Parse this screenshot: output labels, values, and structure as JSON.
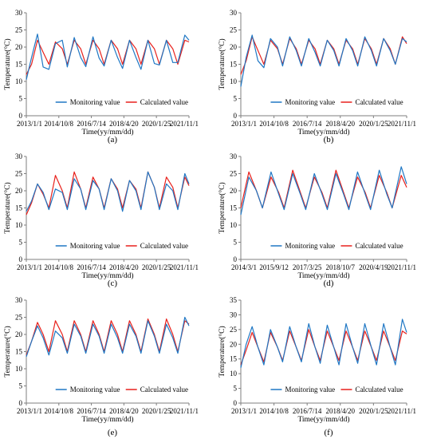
{
  "figure": {
    "panel_count": 6
  },
  "colors": {
    "monitoring": "#1f77c4",
    "calculated": "#e8211c",
    "axis": "#7f7f7f"
  },
  "chart_data": [
    {
      "type": "line",
      "panel_label": "(a)",
      "xlabel": "Time(yy/mm/dd)",
      "ylabel": "Temperature(°C)",
      "xlim": [
        "2013-01-01",
        "2021-11-01"
      ],
      "ylim": [
        0,
        30
      ],
      "yticks": [
        0,
        5,
        10,
        15,
        20,
        25,
        30
      ],
      "xticks": [
        "2013/1/1",
        "2014/10/8",
        "2016/7/14",
        "2018/4/20",
        "2020/1/25",
        "2021/11/1"
      ],
      "legend_position": "bottom-center",
      "grid": false,
      "series": [
        {
          "name": "Monitoring value",
          "color": "#1f77c4",
          "x": [
            "2013-01-01",
            "2013-04-15",
            "2013-08-10",
            "2013-12-01",
            "2014-03-25",
            "2014-08-01",
            "2014-12-15",
            "2015-03-25",
            "2015-08-10",
            "2015-12-15",
            "2016-03-25",
            "2016-08-15",
            "2016-12-15",
            "2017-03-25",
            "2017-08-10",
            "2017-12-15",
            "2018-03-25",
            "2018-08-10",
            "2018-12-15",
            "2019-03-25",
            "2019-08-10",
            "2019-12-15",
            "2020-03-25",
            "2020-08-10",
            "2020-12-15",
            "2021-03-25",
            "2021-08-10",
            "2021-11-01"
          ],
          "y": [
            10.5,
            17,
            23.8,
            14.2,
            13.5,
            21,
            22,
            14.2,
            22.8,
            17,
            14.3,
            23,
            16.8,
            14.5,
            22,
            17,
            13.8,
            22,
            17,
            13.5,
            22,
            15.2,
            14.8,
            22,
            15.5,
            15.5,
            23.5,
            22
          ]
        },
        {
          "name": "Calculated value",
          "color": "#e8211c",
          "x": [
            "2013-01-01",
            "2013-04-15",
            "2013-08-10",
            "2013-12-01",
            "2014-03-25",
            "2014-08-01",
            "2014-12-15",
            "2015-03-25",
            "2015-08-10",
            "2015-12-15",
            "2016-03-25",
            "2016-08-15",
            "2016-12-15",
            "2017-03-25",
            "2017-08-10",
            "2017-12-15",
            "2018-03-25",
            "2018-08-10",
            "2018-12-15",
            "2019-03-25",
            "2019-08-10",
            "2019-12-15",
            "2020-03-25",
            "2020-08-10",
            "2020-12-15",
            "2021-03-25",
            "2021-08-10",
            "2021-11-01"
          ],
          "y": [
            12,
            15,
            22,
            18.5,
            15,
            21.5,
            19.5,
            15,
            22,
            19.5,
            15,
            22,
            19.5,
            15,
            22,
            19.5,
            15,
            22,
            19.5,
            15,
            22,
            19.5,
            15,
            22,
            19.5,
            15,
            22,
            21.5
          ]
        }
      ]
    },
    {
      "type": "line",
      "panel_label": "(b)",
      "xlabel": "Time(yy/mm/dd)",
      "ylabel": "Temperature(°C)",
      "xlim": [
        "2013-01-01",
        "2021-11-01"
      ],
      "ylim": [
        0,
        30
      ],
      "yticks": [
        0,
        5,
        10,
        15,
        20,
        25,
        30
      ],
      "xticks": [
        "2013/1/1",
        "2014/10/8",
        "2016/7/14",
        "2018/4/20",
        "2020/1/25",
        "2021/11/1"
      ],
      "legend_position": "bottom-center",
      "grid": false,
      "series": [
        {
          "name": "Monitoring value",
          "color": "#1f77c4",
          "x": [
            "2013-01-01",
            "2013-04-15",
            "2013-08-10",
            "2013-12-01",
            "2014-03-25",
            "2014-08-01",
            "2014-12-15",
            "2015-03-25",
            "2015-08-10",
            "2015-12-15",
            "2016-03-25",
            "2016-08-15",
            "2016-12-15",
            "2017-03-25",
            "2017-08-10",
            "2017-12-15",
            "2018-03-25",
            "2018-08-10",
            "2018-12-15",
            "2019-03-25",
            "2019-08-10",
            "2019-12-15",
            "2020-03-25",
            "2020-08-10",
            "2020-12-15",
            "2021-03-25",
            "2021-08-10",
            "2021-11-01"
          ],
          "y": [
            8.5,
            17,
            23.5,
            16,
            14,
            22.5,
            20,
            14.5,
            23,
            19,
            14.5,
            22.5,
            18.5,
            14.5,
            22,
            19,
            14.5,
            22.5,
            19,
            14.5,
            23,
            19,
            14.5,
            22.5,
            19,
            15,
            22.5,
            21.5
          ]
        },
        {
          "name": "Calculated value",
          "color": "#e8211c",
          "x": [
            "2013-01-01",
            "2013-04-15",
            "2013-08-10",
            "2013-12-01",
            "2014-03-25",
            "2014-08-01",
            "2014-12-15",
            "2015-03-25",
            "2015-08-10",
            "2015-12-15",
            "2016-03-25",
            "2016-08-15",
            "2016-12-15",
            "2017-03-25",
            "2017-08-10",
            "2017-12-15",
            "2018-03-25",
            "2018-08-10",
            "2018-12-15",
            "2019-03-25",
            "2019-08-10",
            "2019-12-15",
            "2020-03-25",
            "2020-08-10",
            "2020-12-15",
            "2021-03-25",
            "2021-08-10",
            "2021-11-01"
          ],
          "y": [
            12,
            16,
            23,
            19,
            15,
            22,
            19.5,
            15,
            22.5,
            19.5,
            15,
            22,
            19.5,
            15,
            22,
            19.5,
            15,
            22,
            19.5,
            15,
            22.5,
            19.5,
            15,
            22.5,
            19.5,
            15,
            23,
            21
          ]
        }
      ]
    },
    {
      "type": "line",
      "panel_label": "(c)",
      "xlabel": "Time(yy/mm/dd)",
      "ylabel": "Temperature(°C)",
      "xlim": [
        "2013-01-01",
        "2021-11-01"
      ],
      "ylim": [
        0,
        30
      ],
      "yticks": [
        0,
        5,
        10,
        15,
        20,
        25,
        30
      ],
      "xticks": [
        "2013/1/1",
        "2014/10/8",
        "2016/7/14",
        "2018/4/20",
        "2020/1/25",
        "2021/11/1"
      ],
      "legend_position": "bottom-center",
      "grid": false,
      "series": [
        {
          "name": "Monitoring value",
          "color": "#1f77c4",
          "x": [
            "2013-01-01",
            "2013-04-15",
            "2013-08-10",
            "2013-12-01",
            "2014-03-25",
            "2014-08-01",
            "2014-12-15",
            "2015-03-25",
            "2015-08-10",
            "2015-12-15",
            "2016-03-25",
            "2016-08-15",
            "2016-12-15",
            "2017-03-25",
            "2017-08-10",
            "2017-12-15",
            "2018-03-25",
            "2018-08-10",
            "2018-12-15",
            "2019-03-25",
            "2019-08-10",
            "2019-12-15",
            "2020-03-25",
            "2020-08-10",
            "2020-12-15",
            "2021-03-25",
            "2021-08-10",
            "2021-11-01"
          ],
          "y": [
            14,
            17,
            22,
            19.5,
            14.5,
            20.5,
            19.5,
            14.5,
            23.5,
            20.5,
            14.5,
            23,
            20.5,
            14.5,
            23.5,
            20,
            14,
            23,
            20,
            14.5,
            25.5,
            21,
            14.5,
            22,
            20,
            14.5,
            25,
            22
          ]
        },
        {
          "name": "Calculated value",
          "color": "#e8211c",
          "x": [
            "2013-01-01",
            "2013-04-15",
            "2013-08-10",
            "2013-12-01",
            "2014-03-25",
            "2014-08-01",
            "2014-12-15",
            "2015-03-25",
            "2015-08-10",
            "2015-12-15",
            "2016-03-25",
            "2016-08-15",
            "2016-12-15",
            "2017-03-25",
            "2017-08-10",
            "2017-12-15",
            "2018-03-25",
            "2018-08-10",
            "2018-12-15",
            "2019-03-25",
            "2019-08-10",
            "2019-12-15",
            "2020-03-25",
            "2020-08-10",
            "2020-12-15",
            "2021-03-25",
            "2021-08-10",
            "2021-11-01"
          ],
          "y": [
            13,
            16.5,
            22,
            19,
            15,
            24.5,
            20,
            15,
            25.5,
            20.5,
            15,
            24,
            20.5,
            15,
            23.5,
            20.5,
            15,
            23,
            20.5,
            15,
            25.5,
            21,
            15,
            24,
            21,
            15,
            24,
            21.5
          ]
        }
      ]
    },
    {
      "type": "line",
      "panel_label": "(d)",
      "xlabel": "Time(yy/mm/dd)",
      "ylabel": "Temperature(°C)",
      "xlim": [
        "2014-03-01",
        "2021-11-01"
      ],
      "ylim": [
        0,
        30
      ],
      "yticks": [
        0,
        5,
        10,
        15,
        20,
        25,
        30
      ],
      "xticks": [
        "2014/3/1",
        "2015/9/12",
        "2017/3/25",
        "2018/10/7",
        "2020/4/19",
        "2021/11/1"
      ],
      "legend_position": "bottom-center",
      "grid": false,
      "series": [
        {
          "name": "Monitoring value",
          "color": "#1f77c4",
          "x": [
            "2014-03-01",
            "2014-07-15",
            "2014-11-20",
            "2015-03-01",
            "2015-07-25",
            "2015-12-01",
            "2016-03-01",
            "2016-07-25",
            "2016-12-01",
            "2017-03-01",
            "2017-07-25",
            "2017-12-01",
            "2018-03-01",
            "2018-07-25",
            "2018-12-01",
            "2019-03-01",
            "2019-07-25",
            "2019-12-01",
            "2020-03-01",
            "2020-07-25",
            "2020-12-01",
            "2021-03-01",
            "2021-08-01",
            "2021-11-01"
          ],
          "y": [
            13,
            24,
            20,
            15,
            25.5,
            19,
            14.5,
            25,
            19,
            14.5,
            25,
            19,
            14.5,
            25,
            19,
            14.5,
            25.5,
            19,
            14.5,
            26,
            19,
            15,
            27,
            22
          ]
        },
        {
          "name": "Calculated value",
          "color": "#e8211c",
          "x": [
            "2014-03-01",
            "2014-07-15",
            "2014-11-20",
            "2015-03-01",
            "2015-07-25",
            "2015-12-01",
            "2016-03-01",
            "2016-07-25",
            "2016-12-01",
            "2017-03-01",
            "2017-07-25",
            "2017-12-01",
            "2018-03-01",
            "2018-07-25",
            "2018-12-01",
            "2019-03-01",
            "2019-07-25",
            "2019-12-01",
            "2020-03-01",
            "2020-07-25",
            "2020-12-01",
            "2021-03-01",
            "2021-08-01",
            "2021-11-01"
          ],
          "y": [
            15,
            25.5,
            20,
            15,
            24,
            19.5,
            15,
            26,
            19.5,
            15,
            24,
            19.5,
            15,
            26,
            19.5,
            15,
            24,
            19.5,
            15,
            24.5,
            19.5,
            15,
            24.5,
            21
          ]
        }
      ]
    },
    {
      "type": "line",
      "panel_label": "(e)",
      "xlabel": "Time(yy/mm/dd)",
      "ylabel": "Temperature(°C)",
      "xlim": [
        "2013-01-01",
        "2021-11-01"
      ],
      "ylim": [
        0,
        30
      ],
      "yticks": [
        0,
        5,
        10,
        15,
        20,
        25,
        30
      ],
      "xticks": [
        "2013/1/1",
        "2014/10/8",
        "2016/7/14",
        "2018/4/20",
        "2020/1/25",
        "2021/11/1"
      ],
      "legend_position": "bottom-center",
      "grid": false,
      "series": [
        {
          "name": "Monitoring value",
          "color": "#1f77c4",
          "x": [
            "2013-01-01",
            "2013-04-15",
            "2013-08-10",
            "2013-12-01",
            "2014-03-25",
            "2014-08-01",
            "2014-12-15",
            "2015-03-25",
            "2015-08-10",
            "2015-12-15",
            "2016-03-25",
            "2016-08-15",
            "2016-12-15",
            "2017-03-25",
            "2017-08-10",
            "2017-12-15",
            "2018-03-25",
            "2018-08-10",
            "2018-12-15",
            "2019-03-25",
            "2019-08-10",
            "2019-12-15",
            "2020-03-25",
            "2020-08-10",
            "2020-12-15",
            "2021-03-25",
            "2021-08-10",
            "2021-11-01"
          ],
          "y": [
            13.5,
            18,
            22.5,
            19,
            14,
            21,
            19,
            14.5,
            23,
            19.5,
            14.5,
            23,
            19.5,
            14.5,
            23,
            19,
            14.5,
            23,
            19.5,
            14.5,
            24,
            19.5,
            14.5,
            23,
            19,
            14.5,
            25,
            22.5
          ]
        },
        {
          "name": "Calculated value",
          "color": "#e8211c",
          "x": [
            "2013-01-01",
            "2013-04-15",
            "2013-08-10",
            "2013-12-01",
            "2014-03-25",
            "2014-08-01",
            "2014-12-15",
            "2015-03-25",
            "2015-08-10",
            "2015-12-15",
            "2016-03-25",
            "2016-08-15",
            "2016-12-15",
            "2017-03-25",
            "2017-08-10",
            "2017-12-15",
            "2018-03-25",
            "2018-08-10",
            "2018-12-15",
            "2019-03-25",
            "2019-08-10",
            "2019-12-15",
            "2020-03-25",
            "2020-08-10",
            "2020-12-15",
            "2021-03-25",
            "2021-08-10",
            "2021-11-01"
          ],
          "y": [
            14,
            18,
            23.5,
            20,
            15,
            24,
            20,
            15,
            24,
            20,
            15,
            24,
            20,
            15,
            24,
            20,
            15,
            24,
            20,
            15,
            24.5,
            20,
            15,
            24.5,
            20,
            15,
            24,
            23
          ]
        }
      ]
    },
    {
      "type": "line",
      "panel_label": "(f)",
      "xlabel": "Time(yy/mm/dd)",
      "ylabel": "Temperature(°C)",
      "xlim": [
        "2013-01-01",
        "2021-11-01"
      ],
      "ylim": [
        0,
        35
      ],
      "yticks": [
        0,
        5,
        10,
        15,
        20,
        25,
        30,
        35
      ],
      "xticks": [
        "2013/1/1",
        "2014/10/8",
        "2016/7/14",
        "2018/4/20",
        "2020/1/25",
        "2021/11/1"
      ],
      "legend_position": "bottom-center",
      "grid": false,
      "series": [
        {
          "name": "Monitoring value",
          "color": "#1f77c4",
          "x": [
            "2013-01-01",
            "2013-04-15",
            "2013-08-10",
            "2013-12-01",
            "2014-03-25",
            "2014-08-01",
            "2014-12-15",
            "2015-03-25",
            "2015-08-10",
            "2015-12-15",
            "2016-03-25",
            "2016-08-15",
            "2016-12-15",
            "2017-03-25",
            "2017-08-10",
            "2017-12-15",
            "2018-03-25",
            "2018-08-10",
            "2018-12-15",
            "2019-03-25",
            "2019-08-10",
            "2019-12-15",
            "2020-03-25",
            "2020-08-10",
            "2020-12-15",
            "2021-03-25",
            "2021-08-10",
            "2021-11-01"
          ],
          "y": [
            12,
            20,
            26,
            19,
            13,
            25,
            19,
            14,
            26,
            19,
            14,
            27,
            19,
            13.5,
            26.5,
            19,
            13,
            27,
            19,
            13.5,
            27,
            19,
            13,
            27,
            19,
            13,
            28.5,
            24
          ]
        },
        {
          "name": "Calculated value",
          "color": "#e8211c",
          "x": [
            "2013-01-01",
            "2013-04-15",
            "2013-08-10",
            "2013-12-01",
            "2014-03-25",
            "2014-08-01",
            "2014-12-15",
            "2015-03-25",
            "2015-08-10",
            "2015-12-15",
            "2016-03-25",
            "2016-08-15",
            "2016-12-15",
            "2017-03-25",
            "2017-08-10",
            "2017-12-15",
            "2018-03-25",
            "2018-08-10",
            "2018-12-15",
            "2019-03-25",
            "2019-08-10",
            "2019-12-15",
            "2020-03-25",
            "2020-08-10",
            "2020-12-15",
            "2021-03-25",
            "2021-08-10",
            "2021-11-01"
          ],
          "y": [
            13,
            18,
            24,
            19,
            14,
            24,
            19,
            14.5,
            24.5,
            19,
            14.5,
            25,
            19,
            14.5,
            24.5,
            19,
            14.5,
            24.5,
            19,
            14.5,
            24.5,
            19,
            14.5,
            24.5,
            19,
            14.5,
            24.5,
            23.5
          ]
        }
      ]
    }
  ]
}
